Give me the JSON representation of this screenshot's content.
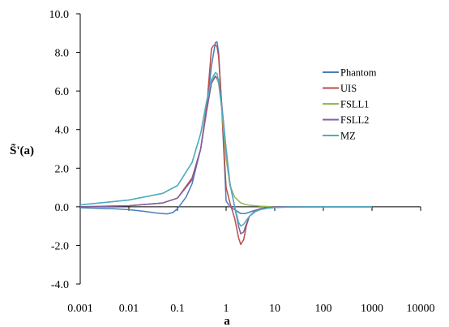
{
  "chart_data": {
    "type": "line",
    "title": "",
    "xlabel": "a",
    "ylabel": "S̃'(a)",
    "x_scale": "log",
    "xlim": [
      0.001,
      10000
    ],
    "ylim": [
      -4.0,
      10.0
    ],
    "x_ticks": [
      "0.001",
      "0.01",
      "0.1",
      "1",
      "10",
      "100",
      "1000",
      "10000"
    ],
    "x_tick_values": [
      0.001,
      0.01,
      0.1,
      1,
      10,
      100,
      1000,
      10000
    ],
    "y_ticks": [
      "10.0",
      "8.0",
      "6.0",
      "4.0",
      "2.0",
      "0.0",
      "-2.0",
      "-4.0"
    ],
    "y_tick_values": [
      10,
      8,
      6,
      4,
      2,
      0,
      -2,
      -4
    ],
    "grid": false,
    "legend_position": "right",
    "series": [
      {
        "name": "Phantom",
        "color": "#4a7ebb",
        "x": [
          0.001,
          0.005,
          0.01,
          0.02,
          0.04,
          0.06,
          0.08,
          0.1,
          0.15,
          0.2,
          0.3,
          0.4,
          0.5,
          0.6,
          0.65,
          0.7,
          0.8,
          0.9,
          1.0,
          1.2,
          1.5,
          2.0,
          2.5,
          3.0,
          4.0,
          5.0,
          7.0,
          10,
          20,
          50,
          100,
          1000
        ],
        "y": [
          -0.05,
          -0.1,
          -0.15,
          -0.23,
          -0.33,
          -0.37,
          -0.3,
          -0.1,
          0.5,
          1.2,
          3.0,
          5.2,
          7.3,
          8.5,
          8.55,
          8.0,
          5.5,
          2.8,
          0.3,
          0.0,
          -0.15,
          -0.35,
          -0.35,
          -0.28,
          -0.18,
          -0.12,
          -0.06,
          -0.03,
          -0.01,
          0.0,
          0.0,
          0.0
        ]
      },
      {
        "name": "UIS",
        "color": "#be4b48",
        "x": [
          0.001,
          0.01,
          0.05,
          0.1,
          0.2,
          0.3,
          0.4,
          0.5,
          0.55,
          0.6,
          0.65,
          0.7,
          0.8,
          0.9,
          1.0,
          1.2,
          1.5,
          1.8,
          2.0,
          2.3,
          2.6,
          3.0,
          4.0,
          5.0,
          7.0,
          10,
          20,
          50,
          100,
          1000
        ],
        "y": [
          0.0,
          0.05,
          0.2,
          0.45,
          1.5,
          3.0,
          5.2,
          8.2,
          8.35,
          8.4,
          8.3,
          7.8,
          5.5,
          3.0,
          1.0,
          0.2,
          -0.6,
          -1.6,
          -1.95,
          -1.7,
          -1.0,
          -0.5,
          -0.2,
          -0.1,
          -0.05,
          0.0,
          0.0,
          0.0,
          0.0,
          0.0
        ]
      },
      {
        "name": "FSLL1",
        "color": "#98b954",
        "x": [
          0.001,
          0.01,
          0.05,
          0.1,
          0.2,
          0.3,
          0.4,
          0.5,
          0.6,
          0.7,
          0.8,
          1.0,
          1.2,
          1.5,
          2.0,
          2.5,
          3.0,
          5.0,
          10,
          100,
          1000
        ],
        "y": [
          0.1,
          0.35,
          0.7,
          1.1,
          2.3,
          3.8,
          5.5,
          6.5,
          6.8,
          6.4,
          5.2,
          2.5,
          1.1,
          0.5,
          0.2,
          0.12,
          0.08,
          0.03,
          0.0,
          0.0,
          0.0
        ]
      },
      {
        "name": "FSLL2",
        "color": "#7d60a0",
        "x": [
          0.001,
          0.01,
          0.05,
          0.1,
          0.2,
          0.3,
          0.4,
          0.5,
          0.6,
          0.7,
          0.8,
          1.0,
          1.2,
          1.5,
          1.8,
          2.0,
          2.3,
          2.6,
          3.0,
          4.0,
          5.0,
          7.0,
          10,
          100,
          1000
        ],
        "y": [
          0.0,
          0.05,
          0.2,
          0.45,
          1.4,
          3.0,
          5.0,
          6.4,
          6.75,
          6.6,
          5.5,
          3.0,
          1.2,
          0.0,
          -1.0,
          -1.4,
          -1.3,
          -0.9,
          -0.5,
          -0.2,
          -0.1,
          -0.05,
          0.0,
          0.0,
          0.0
        ]
      },
      {
        "name": "MZ",
        "color": "#4bacc6",
        "x": [
          0.001,
          0.01,
          0.05,
          0.1,
          0.2,
          0.3,
          0.4,
          0.5,
          0.6,
          0.65,
          0.7,
          0.8,
          1.0,
          1.2,
          1.5,
          1.8,
          2.0,
          2.3,
          2.6,
          3.0,
          4.0,
          5.0,
          7.0,
          10,
          20,
          100,
          1000
        ],
        "y": [
          0.1,
          0.35,
          0.7,
          1.1,
          2.3,
          3.8,
          5.5,
          6.6,
          6.95,
          6.9,
          6.5,
          5.3,
          3.0,
          1.2,
          0.0,
          -0.8,
          -1.0,
          -0.9,
          -0.7,
          -0.5,
          -0.25,
          -0.15,
          -0.08,
          -0.04,
          -0.01,
          0.0,
          0.0
        ]
      }
    ]
  }
}
